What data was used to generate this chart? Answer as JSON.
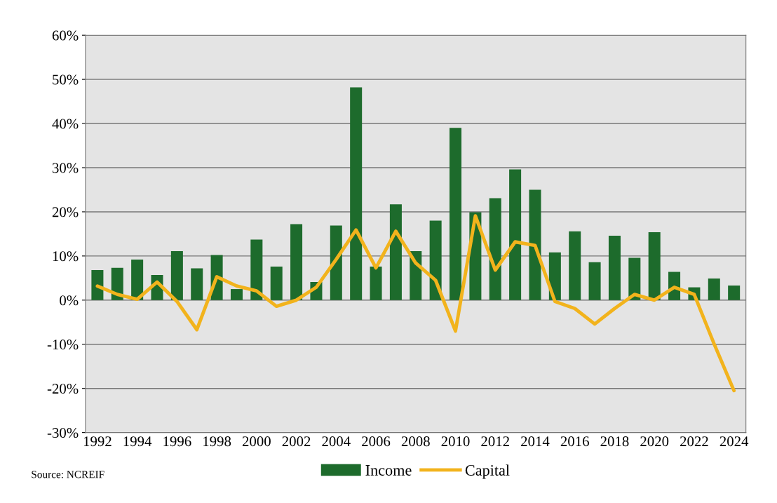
{
  "chart_data": {
    "type": "bar",
    "categories": [
      "1992",
      null,
      "1994",
      null,
      "1996",
      null,
      "1998",
      null,
      "2000",
      null,
      "2002",
      null,
      "2004",
      null,
      "2006",
      null,
      "2008",
      null,
      "2010",
      null,
      "2012",
      null,
      "2014",
      null,
      "2016",
      null,
      "2018",
      null,
      "2020",
      null,
      "2022",
      null,
      "2024"
    ],
    "series": [
      {
        "name": "Income",
        "color": "#1d6b2c",
        "values": [
          6.8,
          7.3,
          9.2,
          5.7,
          11.1,
          7.2,
          10.2,
          2.5,
          13.7,
          7.6,
          17.2,
          4.1,
          16.9,
          48.2,
          7.6,
          21.7,
          11.1,
          18.0,
          39.0,
          19.9,
          23.1,
          29.6,
          25.0,
          10.8,
          15.6,
          8.6,
          14.6,
          9.6,
          15.4,
          6.4,
          2.9,
          4.9,
          3.3
        ]
      },
      {
        "name": "Capital",
        "type": "line",
        "color": "#f2b31c",
        "values": [
          3.2,
          1.3,
          0.2,
          4.1,
          -0.3,
          -6.7,
          5.3,
          3.2,
          2.1,
          -1.4,
          0,
          2.9,
          9.2,
          15.9,
          7.3,
          15.6,
          8.4,
          4.5,
          -7.0,
          19.1,
          6.8,
          13.2,
          12.4,
          -0.3,
          -1.9,
          -5.4,
          -1.9,
          1.3,
          0,
          2.9,
          1.3,
          -9.9,
          -20.5
        ]
      }
    ],
    "ylim": [
      -30,
      60
    ],
    "yticks": [
      {
        "value": -30,
        "label": "-30%"
      },
      {
        "value": -20,
        "label": "-20%"
      },
      {
        "value": -10,
        "label": "-10%"
      },
      {
        "value": 0,
        "label": "0%"
      },
      {
        "value": 10,
        "label": "10%"
      },
      {
        "value": 20,
        "label": "20%"
      },
      {
        "value": 30,
        "label": "30%"
      },
      {
        "value": 40,
        "label": "40%"
      },
      {
        "value": 50,
        "label": "50%"
      },
      {
        "value": 60,
        "label": "60%"
      }
    ],
    "grid": "y",
    "legend": "bottom",
    "marker": "none",
    "line_style": "solid",
    "annotations": [
      "Source: NCREIF"
    ]
  }
}
